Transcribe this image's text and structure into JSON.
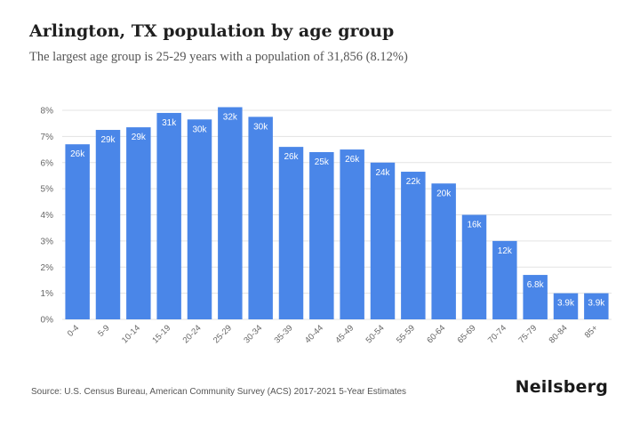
{
  "header": {
    "title": "Arlington, TX population by age group",
    "subtitle": "The largest age group is 25-29 years with a population of 31,856 (8.12%)"
  },
  "footer": {
    "source": "Source: U.S. Census Bureau, American Community Survey (ACS) 2017-2021 5-Year Estimates",
    "brand": "Neilsberg"
  },
  "colors": {
    "bar": "#4a86e8",
    "grid": "#e3e3e3",
    "label": "#ffffff",
    "tick": "#666666"
  },
  "chart_data": {
    "type": "bar",
    "title": "Arlington, TX population by age group",
    "xlabel": "",
    "ylabel": "",
    "categories": [
      "0-4",
      "5-9",
      "10-14",
      "15-19",
      "20-24",
      "25-29",
      "30-34",
      "35-39",
      "40-44",
      "45-49",
      "50-54",
      "55-59",
      "60-64",
      "65-69",
      "70-74",
      "75-79",
      "80-84",
      "85+"
    ],
    "values": [
      6.7,
      7.25,
      7.35,
      7.9,
      7.65,
      8.12,
      7.75,
      6.6,
      6.4,
      6.5,
      6.0,
      5.65,
      5.2,
      4.0,
      3.0,
      1.7,
      1.0,
      1.0
    ],
    "data_labels": [
      "26k",
      "29k",
      "29k",
      "31k",
      "30k",
      "32k",
      "30k",
      "26k",
      "25k",
      "26k",
      "24k",
      "22k",
      "20k",
      "16k",
      "12k",
      "6.8k",
      "3.9k",
      "3.9k"
    ],
    "ylim": [
      0,
      8
    ],
    "yticks": [
      0,
      1,
      2,
      3,
      4,
      5,
      6,
      7,
      8
    ],
    "ytick_labels": [
      "0%",
      "1%",
      "2%",
      "3%",
      "4%",
      "5%",
      "6%",
      "7%",
      "8%"
    ],
    "grid": true,
    "legend": "none"
  }
}
